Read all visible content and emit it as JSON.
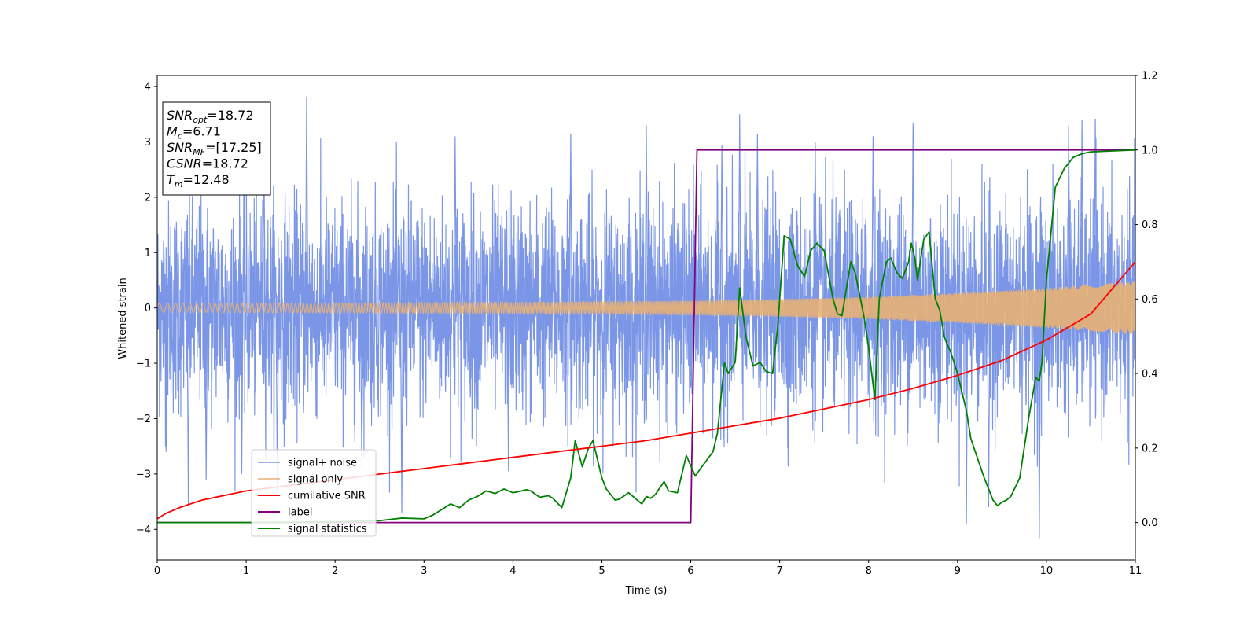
{
  "chart_data": {
    "type": "line",
    "title": "",
    "xlabel": "Time (s)",
    "ylabel": "Whitened strain",
    "xlim": [
      0,
      11
    ],
    "ylim": [
      -4.55,
      4.2
    ],
    "y2lim": [
      -0.1,
      1.2
    ],
    "xticks": [
      "0",
      "1",
      "2",
      "3",
      "4",
      "5",
      "6",
      "7",
      "8",
      "9",
      "10",
      "11"
    ],
    "yticks": [
      "4",
      "3",
      "2",
      "1",
      "0",
      "−1",
      "−2",
      "−3",
      "−4"
    ],
    "y2ticks": [
      "1.2",
      "1.0",
      "0.8",
      "0.6",
      "0.4",
      "0.2",
      "0.0"
    ],
    "grid": false,
    "legend_position": "lower-left",
    "info_box": {
      "lines": [
        {
          "sym": "SNR",
          "sub": "opt",
          "val": "=18.72"
        },
        {
          "sym": "M",
          "sub": "c",
          "val": "=6.71"
        },
        {
          "sym": "SNR",
          "sub": "MF",
          "val": "=[17.25]"
        },
        {
          "sym": "CSNR",
          "sub": "",
          "val": "=18.72"
        },
        {
          "sym": "T",
          "sub": "m",
          "val": "=12.48"
        }
      ]
    },
    "series": [
      {
        "name": "signal+ noise",
        "axis": "left",
        "color": "#7b96e6",
        "noise_amplitude_range": [
          -4.16,
          3.82
        ],
        "x": [
          0.1,
          0.35,
          0.55,
          0.95,
          1.2,
          1.35,
          1.68,
          2.3,
          2.75,
          3.35,
          3.95,
          4.65,
          5.5,
          6.35,
          6.55,
          6.75,
          7.4,
          8.05,
          8.5,
          9.1,
          9.35,
          9.92,
          10.25,
          10.4,
          10.55
        ],
        "values": [
          -2.6,
          -3.55,
          -3.1,
          -3.0,
          2.8,
          -3.3,
          3.82,
          -2.9,
          -3.7,
          3.1,
          -2.95,
          3.15,
          3.3,
          2.95,
          3.5,
          3.15,
          3.0,
          3.1,
          3.35,
          -3.9,
          -3.6,
          -4.16,
          3.3,
          3.4,
          3.42
        ]
      },
      {
        "name": "signal only",
        "axis": "left",
        "color": "#e8b074",
        "envelope": {
          "x": [
            0,
            2,
            4,
            6,
            7,
            8,
            9,
            10,
            11
          ],
          "values": [
            0.08,
            0.09,
            0.1,
            0.13,
            0.16,
            0.2,
            0.27,
            0.36,
            0.48
          ]
        }
      },
      {
        "name": "cumilative SNR",
        "axis": "right",
        "color": "#ff0000",
        "x": [
          0,
          0.1,
          0.25,
          0.5,
          1,
          1.5,
          2,
          2.5,
          3,
          3.5,
          4,
          4.5,
          5,
          5.5,
          6,
          6.5,
          7,
          7.5,
          8,
          8.5,
          9,
          9.5,
          10,
          10.5,
          11
        ],
        "values": [
          0.01,
          0.025,
          0.04,
          0.06,
          0.085,
          0.1,
          0.115,
          0.13,
          0.145,
          0.16,
          0.175,
          0.19,
          0.205,
          0.22,
          0.24,
          0.26,
          0.28,
          0.305,
          0.33,
          0.36,
          0.395,
          0.435,
          0.49,
          0.56,
          0.7
        ]
      },
      {
        "name": "label",
        "axis": "right",
        "color": "#800080",
        "x": [
          0,
          6.0,
          6.07,
          11
        ],
        "values": [
          0.0,
          0.0,
          1.0,
          1.0
        ]
      },
      {
        "name": "signal statistics",
        "axis": "right",
        "color": "#008000",
        "x": [
          0,
          1,
          2,
          2.5,
          2.75,
          3.0,
          3.1,
          3.2,
          3.3,
          3.4,
          3.5,
          3.6,
          3.7,
          3.8,
          3.9,
          4.0,
          4.1,
          4.15,
          4.2,
          4.3,
          4.4,
          4.45,
          4.55,
          4.65,
          4.7,
          4.78,
          4.85,
          4.9,
          5.0,
          5.05,
          5.1,
          5.15,
          5.2,
          5.3,
          5.35,
          5.45,
          5.5,
          5.55,
          5.6,
          5.7,
          5.75,
          5.85,
          5.95,
          6.05,
          6.15,
          6.25,
          6.3,
          6.38,
          6.42,
          6.5,
          6.55,
          6.62,
          6.7,
          6.78,
          6.85,
          6.92,
          6.98,
          7.05,
          7.12,
          7.2,
          7.28,
          7.35,
          7.42,
          7.5,
          7.6,
          7.65,
          7.7,
          7.8,
          7.85,
          7.9,
          7.95,
          8.0,
          8.07,
          8.12,
          8.2,
          8.25,
          8.32,
          8.38,
          8.45,
          8.48,
          8.52,
          8.55,
          8.62,
          8.68,
          8.75,
          8.8,
          8.85,
          8.88,
          8.92,
          9.0,
          9.1,
          9.15,
          9.2,
          9.3,
          9.4,
          9.45,
          9.5,
          9.55,
          9.6,
          9.7,
          9.8,
          9.88,
          9.92,
          9.95,
          10.0,
          10.1,
          10.2,
          10.3,
          10.4,
          10.5,
          11
        ],
        "values": [
          0.0,
          0.0,
          0.002,
          0.005,
          0.012,
          0.01,
          0.02,
          0.035,
          0.05,
          0.04,
          0.06,
          0.07,
          0.085,
          0.078,
          0.09,
          0.08,
          0.085,
          0.088,
          0.085,
          0.068,
          0.072,
          0.065,
          0.04,
          0.12,
          0.22,
          0.15,
          0.2,
          0.22,
          0.12,
          0.09,
          0.075,
          0.06,
          0.063,
          0.08,
          0.07,
          0.05,
          0.07,
          0.065,
          0.075,
          0.11,
          0.085,
          0.08,
          0.18,
          0.125,
          0.158,
          0.19,
          0.24,
          0.43,
          0.4,
          0.43,
          0.63,
          0.5,
          0.42,
          0.43,
          0.405,
          0.4,
          0.53,
          0.77,
          0.76,
          0.69,
          0.66,
          0.73,
          0.75,
          0.73,
          0.6,
          0.56,
          0.555,
          0.7,
          0.67,
          0.61,
          0.55,
          0.47,
          0.33,
          0.6,
          0.7,
          0.71,
          0.67,
          0.655,
          0.7,
          0.75,
          0.71,
          0.65,
          0.76,
          0.78,
          0.6,
          0.57,
          0.5,
          0.48,
          0.46,
          0.4,
          0.3,
          0.225,
          0.19,
          0.12,
          0.06,
          0.045,
          0.055,
          0.06,
          0.07,
          0.12,
          0.28,
          0.39,
          0.38,
          0.43,
          0.65,
          0.9,
          0.95,
          0.98,
          0.99,
          0.995,
          1.0
        ]
      }
    ]
  }
}
